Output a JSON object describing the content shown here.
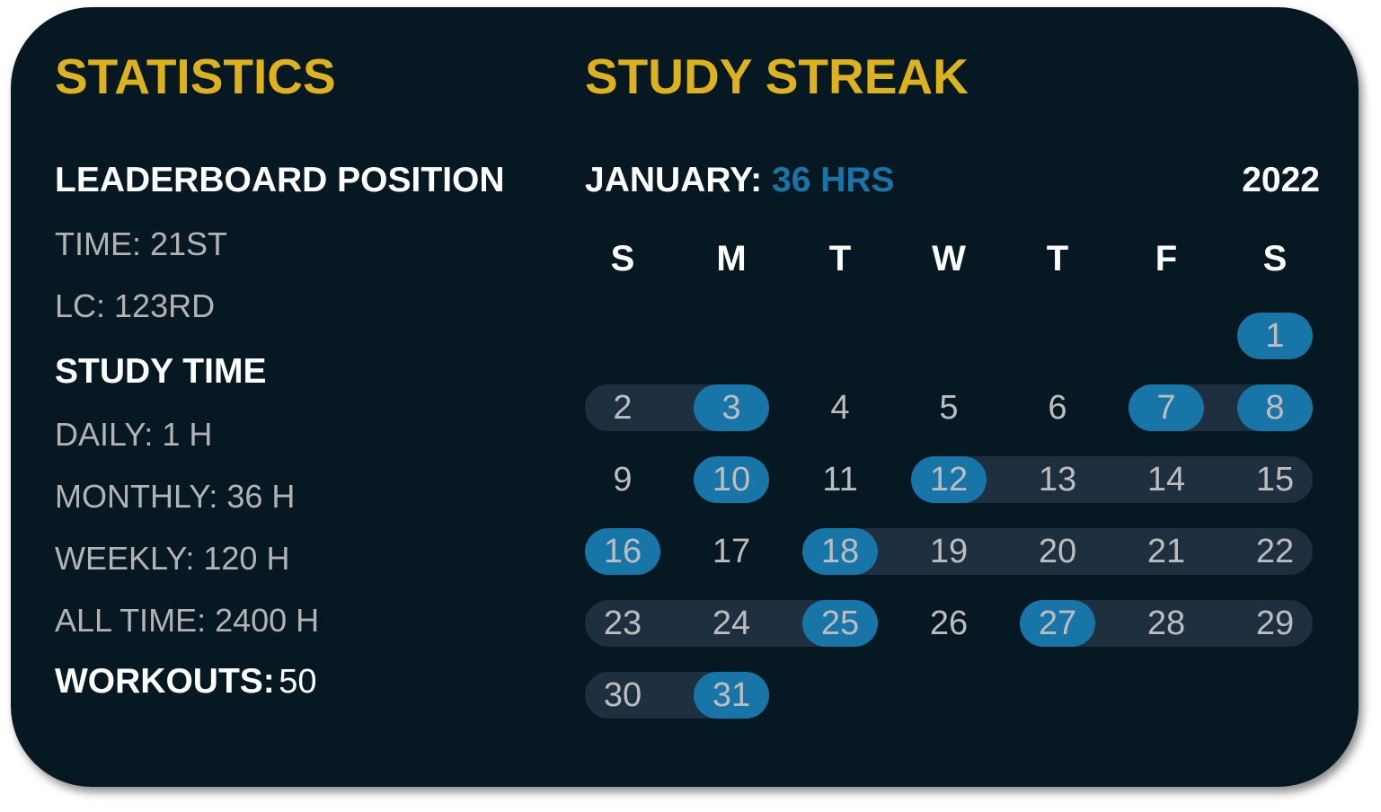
{
  "colors": {
    "background": "#061822",
    "heading": "#DDB21E",
    "accent": "#1775A8",
    "streak_range": "#1E3040",
    "muted_text": "#B3B3B3"
  },
  "statistics": {
    "title": "STATISTICS",
    "leaderboard": {
      "heading": "LEADERBOARD POSITION",
      "time": "TIME: 21ST",
      "lc": "LC: 123RD"
    },
    "study_time": {
      "heading": "STUDY TIME",
      "daily": "DAILY: 1 H",
      "monthly": "MONTHLY: 36 H",
      "weekly": "WEEKLY: 120 H",
      "all_time": "ALL TIME: 2400 H"
    },
    "workouts": {
      "label": "WORKOUTS:",
      "value": "50"
    }
  },
  "streak": {
    "title": "STUDY STREAK",
    "month_label": "JANUARY:",
    "month_hours": "36 HRS",
    "year": "2022",
    "weekdays": [
      "S",
      "M",
      "T",
      "W",
      "T",
      "F",
      "S"
    ],
    "first_weekday_index": 6,
    "days_in_month": 31,
    "highlighted_days": [
      1,
      3,
      7,
      8,
      10,
      12,
      16,
      18,
      25,
      27,
      31
    ],
    "streak_ranges": [
      [
        2,
        3
      ],
      [
        7,
        8
      ],
      [
        12,
        15
      ],
      [
        18,
        22
      ],
      [
        23,
        25
      ],
      [
        27,
        29
      ],
      [
        30,
        31
      ]
    ]
  }
}
